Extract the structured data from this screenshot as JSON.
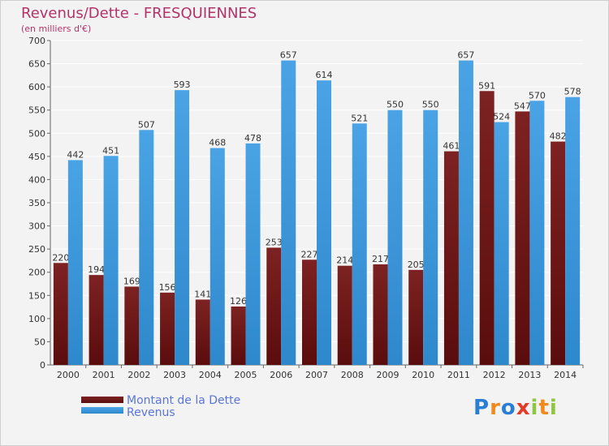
{
  "title": "Revenus/Dette - FRESQUIENNES",
  "subtitle": "(en milliers d'€)",
  "brand": {
    "text": "Proxiti",
    "letter_colors": [
      "#2a7fd4",
      "#f08a1c",
      "#2a7fd4",
      "#e53a2a",
      "#8fc63f",
      "#f08a1c",
      "#8fc63f"
    ]
  },
  "colors": {
    "debt": "#7d2222",
    "debt_dark": "#5a0c0c",
    "revenue": "#4aa3e4",
    "revenue_dark": "#2e88cc",
    "grid": "#ffffff",
    "background": "#f3f3f3"
  },
  "chart_data": {
    "type": "bar",
    "categories": [
      "2000",
      "2001",
      "2002",
      "2003",
      "2004",
      "2005",
      "2006",
      "2007",
      "2008",
      "2009",
      "2010",
      "2011",
      "2012",
      "2013",
      "2014"
    ],
    "series": [
      {
        "name": "Montant de la Dette",
        "color": "#7d2222",
        "values": [
          220,
          194,
          169,
          156,
          141,
          126,
          253,
          227,
          214,
          217,
          205,
          461,
          591,
          547,
          482
        ]
      },
      {
        "name": "Revenus",
        "color": "#4aa3e4",
        "values": [
          442,
          451,
          507,
          593,
          468,
          478,
          657,
          614,
          521,
          550,
          550,
          657,
          524,
          570,
          578
        ]
      }
    ],
    "ylim": [
      0,
      700
    ],
    "yticks": [
      0,
      50,
      100,
      150,
      200,
      250,
      300,
      350,
      400,
      450,
      500,
      550,
      600,
      650,
      700
    ],
    "grid": true,
    "legend_position": "bottom-left"
  }
}
